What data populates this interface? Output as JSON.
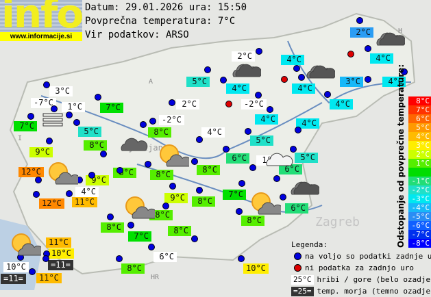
{
  "logo": {
    "text": "info",
    "url": "www.informacije.si"
  },
  "header": {
    "date_line": "Datum: 29.01.2026 ura: 15:50",
    "avg_line": "Povprečna temperatura: 7°C",
    "source_line": "Vir podatkov: ARSO"
  },
  "map_labels": {
    "ljubljana": "Ljubljana",
    "zagreb": "Zagreb",
    "hr": "HR",
    "a": "A",
    "i": "I",
    "h": "H"
  },
  "stations": [
    {
      "t": "2°C",
      "c": "#2a9df4"
    },
    {
      "t": "2°C",
      "c": "#ffffff"
    },
    {
      "t": "4°C",
      "c": "#00e8f0"
    },
    {
      "t": "4°C",
      "c": "#00e8f0"
    },
    {
      "t": "4°C",
      "c": "#00e8f0"
    },
    {
      "t": "3°C",
      "c": "#18b8f8"
    },
    {
      "t": "5°C",
      "c": "#20e0c8"
    },
    {
      "t": "4°C",
      "c": "#00e8f0"
    },
    {
      "t": "4°C",
      "c": "#00e8f0"
    },
    {
      "t": "4°C",
      "c": "#00e8f0"
    },
    {
      "t": "3°C",
      "c": "#ffffff"
    },
    {
      "t": "-7°C",
      "c": "#ffffff"
    },
    {
      "t": "1°C",
      "c": "#ffffff"
    },
    {
      "t": "7°C",
      "c": "#00e000"
    },
    {
      "t": "2°C",
      "c": "#ffffff"
    },
    {
      "t": "-2°C",
      "c": "#ffffff"
    },
    {
      "t": "7°C",
      "c": "#00e000"
    },
    {
      "t": "4°C",
      "c": "#00e8f0"
    },
    {
      "t": "-2°C",
      "c": "#ffffff"
    },
    {
      "t": "5°C",
      "c": "#20e0c8"
    },
    {
      "t": "4°C",
      "c": "#ffffff"
    },
    {
      "t": "8°C",
      "c": "#55ee00"
    },
    {
      "t": "4°C",
      "c": "#00e8f0"
    },
    {
      "t": "5°C",
      "c": "#20e0c8"
    },
    {
      "t": "8°C",
      "c": "#55ee00"
    },
    {
      "t": "9°C",
      "c": "#ccff00"
    },
    {
      "t": "6°C",
      "c": "#22dd77"
    },
    {
      "t": "1°C",
      "c": "#ffffff"
    },
    {
      "t": "5°C",
      "c": "#20e0c8"
    },
    {
      "t": "12°C",
      "c": "#ff8800"
    },
    {
      "t": "8°C",
      "c": "#55ee00"
    },
    {
      "t": "8°C",
      "c": "#55ee00"
    },
    {
      "t": "8°C",
      "c": "#55ee00"
    },
    {
      "t": "6°C",
      "c": "#22dd77"
    },
    {
      "t": "9°C",
      "c": "#ccff00"
    },
    {
      "t": "4°C",
      "c": "#ffffff"
    },
    {
      "t": "12°C",
      "c": "#ff8800"
    },
    {
      "t": "11°C",
      "c": "#ffbb00"
    },
    {
      "t": "9°C",
      "c": "#ccff00"
    },
    {
      "t": "8°C",
      "c": "#55ee00"
    },
    {
      "t": "7°C",
      "c": "#00e000"
    },
    {
      "t": "6°C",
      "c": "#22dd77"
    },
    {
      "t": "8°C",
      "c": "#55ee00"
    },
    {
      "t": "8°C",
      "c": "#55ee00"
    },
    {
      "t": "7°C",
      "c": "#00e000"
    },
    {
      "t": "8°C",
      "c": "#55ee00"
    },
    {
      "t": "8°C",
      "c": "#55ee00"
    },
    {
      "t": "6°C",
      "c": "#ffffff"
    },
    {
      "t": "8°C",
      "c": "#55ee00"
    },
    {
      "t": "10°C",
      "c": "#ffee00"
    },
    {
      "t": "11°C",
      "c": "#ffbb00"
    },
    {
      "t": "10°C",
      "c": "#ffee00"
    },
    {
      "t": "=11=",
      "c": "#333333"
    },
    {
      "t": "10°C",
      "c": "#ffffff"
    },
    {
      "t": "=11=",
      "c": "#333333"
    },
    {
      "t": "11°C",
      "c": "#ffbb00"
    }
  ],
  "dots": [
    "ok",
    "ok",
    "ok",
    "ok",
    "ok",
    "ok",
    "ok",
    "ok",
    "ok",
    "ok",
    "ok",
    "ok",
    "ok",
    "ok",
    "ok",
    "ok",
    "ok",
    "ok",
    "ok",
    "ok",
    "ok",
    "ok",
    "ok",
    "ok",
    "ok",
    "ok",
    "ok",
    "ok",
    "ok",
    "ok",
    "ok",
    "ok",
    "ok",
    "ok",
    "ok",
    "ok",
    "ok",
    "ok",
    "ok",
    "ok",
    "ok",
    "ok",
    "ok",
    "ok",
    "ok",
    "ok",
    "ok",
    "ok",
    "ok",
    "ok",
    "ok",
    "ok",
    "ok",
    "ok",
    "missing",
    "missing",
    "missing"
  ],
  "dot_colors": {
    "ok": "#0000dd",
    "missing": "#dd0000"
  },
  "weather_icons": [
    "overcast",
    "overcast",
    "overcast",
    "cloud",
    "partly-sunny",
    "partly-sunny",
    "partly-sunny",
    "partly-sunny",
    "overcast",
    "light-cloud",
    "partly-sunny",
    "fog"
  ],
  "scale": {
    "title": "Odstopanje od povprečne temperature:",
    "items": [
      {
        "t": "8°C",
        "c": "#ff0000"
      },
      {
        "t": "7°C",
        "c": "#ff3300"
      },
      {
        "t": "6°C",
        "c": "#ff6600"
      },
      {
        "t": "5°C",
        "c": "#ff9900"
      },
      {
        "t": "4°C",
        "c": "#ffbb00"
      },
      {
        "t": "3°C",
        "c": "#ffee00"
      },
      {
        "t": "2°C",
        "c": "#ccff00"
      },
      {
        "t": "1°C",
        "c": "#55ee00"
      },
      {
        "t": "",
        "c": "#00dd00"
      },
      {
        "t": "-1°C",
        "c": "#22dd77"
      },
      {
        "t": "-2°C",
        "c": "#20e0c8"
      },
      {
        "t": "-3°C",
        "c": "#00e8f0"
      },
      {
        "t": "-4°C",
        "c": "#18b8f8"
      },
      {
        "t": "-5°C",
        "c": "#2a8df4"
      },
      {
        "t": "-6°C",
        "c": "#1060ff"
      },
      {
        "t": "-7°C",
        "c": "#0030ee"
      },
      {
        "t": "-8°C",
        "c": "#0000ff"
      }
    ]
  },
  "legend": {
    "title": "Legenda:",
    "ok": "na voljo so podatki zadnje ure",
    "missing": "ni podatka za zadnjo uro",
    "mountain_sample": "25°C",
    "mountain": "hribi / gore (belo ozadje)",
    "sea_sample": "=25=",
    "sea": "temp. morja (temno ozadje)"
  }
}
